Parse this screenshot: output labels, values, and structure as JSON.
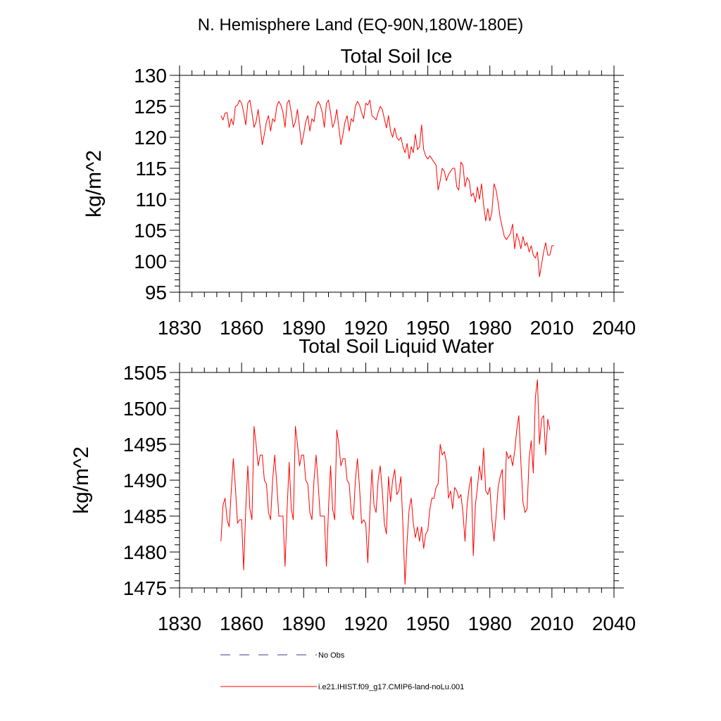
{
  "figure_title": "N. Hemisphere Land (EQ-90N,180W-180E)",
  "legend": {
    "obs_label": "No Obs",
    "model_label": "i.e21.IHIST.f09_g17.CMIP6-land-noLu.001",
    "obs_color": "#3b3b8f",
    "model_color": "#ff0000"
  },
  "chart_data": [
    {
      "type": "line",
      "title": "Total Soil Ice",
      "xlabel": "",
      "ylabel": "kg/m^2",
      "xlim": [
        1830,
        2040
      ],
      "ylim": [
        95,
        130
      ],
      "xticks": [
        1830,
        1860,
        1890,
        1920,
        1950,
        1980,
        2010,
        2040
      ],
      "yticks": [
        95,
        100,
        105,
        110,
        115,
        120,
        125,
        130
      ],
      "grid": false,
      "series": [
        {
          "name": "i.e21.IHIST.f09_g17.CMIP6-land-noLu.001",
          "color": "#ff0000",
          "x_start": 1850,
          "values": [
            123.5,
            122.8,
            123.9,
            124.0,
            121.6,
            123.0,
            122.0,
            125.0,
            125.2,
            126.0,
            125.5,
            124.0,
            122.0,
            125.5,
            126.0,
            124.0,
            121.6,
            122.5,
            124.5,
            121.6,
            118.8,
            120.5,
            122.5,
            123.5,
            121.0,
            123.0,
            122.5,
            125.0,
            125.8,
            125.2,
            124.0,
            121.6,
            125.5,
            126.0,
            124.0,
            121.6,
            122.5,
            124.5,
            121.6,
            118.8,
            120.5,
            122.5,
            123.5,
            121.0,
            123.0,
            122.5,
            125.0,
            125.8,
            125.2,
            124.0,
            121.6,
            125.5,
            126.0,
            124.0,
            121.6,
            122.5,
            124.5,
            121.6,
            118.8,
            120.5,
            122.5,
            123.5,
            121.0,
            123.0,
            122.5,
            125.0,
            125.8,
            125.2,
            124.0,
            123.0,
            125.5,
            125.2,
            126.0,
            123.5,
            123.2,
            122.8,
            124.0,
            125.0,
            124.5,
            123.0,
            121.5,
            123.5,
            121.0,
            120.0,
            121.5,
            120.0,
            119.5,
            120.0,
            118.5,
            117.5,
            119.0,
            116.5,
            118.5,
            117.5,
            120.5,
            118.0,
            118.5,
            122.0,
            118.0,
            117.0,
            116.5,
            117.0,
            116.5,
            116.0,
            115.5,
            111.5,
            113.0,
            115.0,
            114.5,
            113.0,
            114.0,
            114.5,
            115.0,
            115.0,
            112.0,
            111.5,
            116.0,
            115.5,
            112.0,
            113.5,
            113.0,
            110.5,
            111.0,
            109.5,
            112.0,
            110.0,
            112.5,
            109.0,
            106.5,
            108.5,
            106.5,
            108.0,
            112.5,
            111.5,
            109.5,
            107.0,
            105.5,
            104.0,
            103.5,
            104.0,
            104.5,
            106.0,
            102.0,
            104.5,
            103.5,
            102.0,
            104.0,
            102.5,
            103.0,
            101.5,
            102.5,
            101.0,
            100.5,
            101.5,
            97.5,
            99.5,
            101.5,
            103.0,
            101.0,
            101.0,
            102.5,
            102.5
          ]
        }
      ]
    },
    {
      "type": "line",
      "title": "Total Soil Liquid Water",
      "xlabel": "",
      "ylabel": "kg/m^2",
      "xlim": [
        1830,
        2040
      ],
      "ylim": [
        1475,
        1505
      ],
      "xticks": [
        1830,
        1860,
        1890,
        1920,
        1950,
        1980,
        2010,
        2040
      ],
      "yticks": [
        1475,
        1480,
        1485,
        1490,
        1495,
        1500,
        1505
      ],
      "grid": false,
      "series": [
        {
          "name": "i.e21.IHIST.f09_g17.CMIP6-land-noLu.001",
          "color": "#ff0000",
          "x_start": 1850,
          "values": [
            1481.5,
            1486.5,
            1487.5,
            1484.5,
            1483.5,
            1488.5,
            1493.0,
            1489.0,
            1484.0,
            1484.5,
            1484.5,
            1477.5,
            1486.0,
            1492.0,
            1486.0,
            1484.5,
            1497.5,
            1495.0,
            1492.0,
            1493.5,
            1493.5,
            1490.0,
            1489.5,
            1485.5,
            1484.5,
            1490.0,
            1493.5,
            1489.5,
            1485.0,
            1485.0,
            1485.0,
            1478.0,
            1486.0,
            1492.5,
            1486.0,
            1484.5,
            1497.5,
            1495.0,
            1492.0,
            1493.5,
            1493.5,
            1490.0,
            1489.5,
            1485.5,
            1484.5,
            1490.0,
            1493.5,
            1489.5,
            1485.0,
            1485.0,
            1485.0,
            1478.0,
            1486.0,
            1492.0,
            1486.0,
            1484.5,
            1497.0,
            1495.0,
            1492.0,
            1493.0,
            1493.0,
            1490.0,
            1489.5,
            1485.5,
            1484.5,
            1490.0,
            1493.0,
            1489.0,
            1484.0,
            1484.5,
            1484.0,
            1478.5,
            1485.5,
            1491.5,
            1486.5,
            1485.5,
            1490.0,
            1492.0,
            1488.5,
            1484.0,
            1482.5,
            1490.5,
            1487.0,
            1490.0,
            1491.5,
            1488.0,
            1488.5,
            1490.5,
            1483.5,
            1475.5,
            1481.5,
            1486.0,
            1487.5,
            1484.0,
            1482.0,
            1483.5,
            1481.5,
            1483.5,
            1480.5,
            1482.5,
            1483.0,
            1486.0,
            1487.5,
            1487.5,
            1489.0,
            1489.5,
            1495.0,
            1493.5,
            1494.0,
            1492.5,
            1487.5,
            1488.5,
            1486.0,
            1489.0,
            1488.5,
            1487.5,
            1488.0,
            1485.5,
            1481.5,
            1486.5,
            1489.0,
            1490.5,
            1479.5,
            1486.5,
            1489.0,
            1492.0,
            1490.0,
            1494.5,
            1488.5,
            1488.0,
            1489.0,
            1484.5,
            1481.5,
            1485.0,
            1489.0,
            1490.5,
            1491.5,
            1484.5,
            1494.0,
            1493.0,
            1493.5,
            1492.0,
            1494.0,
            1497.0,
            1499.0,
            1492.5,
            1487.0,
            1485.5,
            1486.0,
            1493.0,
            1495.5,
            1491.0,
            1501.5,
            1504.0,
            1495.0,
            1498.5,
            1499.0,
            1493.5,
            1498.5,
            1497.0
          ]
        }
      ]
    }
  ]
}
